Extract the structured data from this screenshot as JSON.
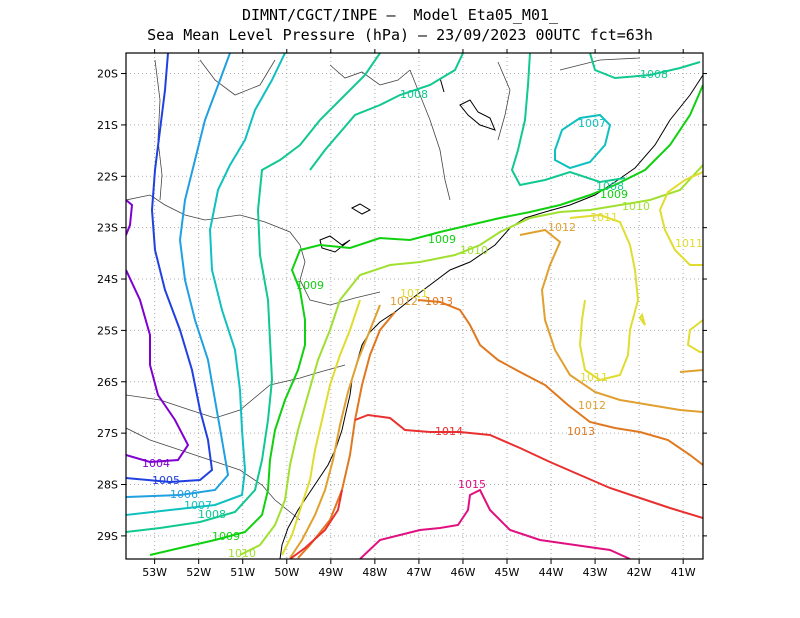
{
  "title": {
    "line1": "DIMNT/CGCT/INPE –  Model Eta05_M01_",
    "line2": "Sea Mean Level Pressure (hPa) – 23/09/2023 00UTC fct=63h"
  },
  "axes": {
    "lon_ticks": [
      "53W",
      "52W",
      "51W",
      "50W",
      "49W",
      "48W",
      "47W",
      "46W",
      "45W",
      "44W",
      "43W",
      "42W",
      "41W"
    ],
    "lat_ticks": [
      "20S",
      "21S",
      "22S",
      "23S",
      "24S",
      "25S",
      "26S",
      "27S",
      "28S",
      "29S"
    ]
  },
  "chart_data": {
    "type": "contour-map",
    "variable": "Sea Mean Level Pressure (hPa)",
    "lon_range": [
      -53.65,
      -40.55
    ],
    "lat_range": [
      -29.45,
      -19.6
    ],
    "grid": true,
    "contours": [
      {
        "level": "1004",
        "color": "#8000d0"
      },
      {
        "level": "1005",
        "color": "#2040e0"
      },
      {
        "level": "1006",
        "color": "#20a0e0"
      },
      {
        "level": "1007",
        "color": "#10c0c0"
      },
      {
        "level": "1008",
        "color": "#10c890"
      },
      {
        "level": "1009",
        "color": "#10d010"
      },
      {
        "level": "1010",
        "color": "#a0e030"
      },
      {
        "level": "1011",
        "color": "#e0dc30"
      },
      {
        "level": "1012",
        "color": "#e0a030"
      },
      {
        "level": "1013",
        "color": "#e07820"
      },
      {
        "level": "1014",
        "color": "#e83030"
      },
      {
        "level": "1015",
        "color": "#e01080"
      }
    ]
  }
}
